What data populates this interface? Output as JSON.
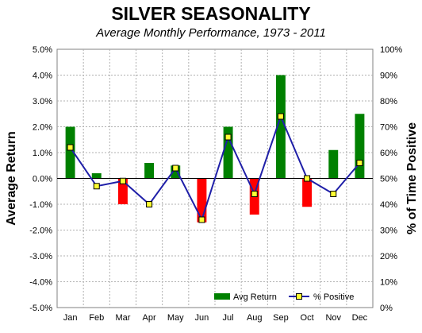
{
  "chart_data": {
    "type": "bar+line",
    "title": "SILVER SEASONALITY",
    "subtitle": "Average Monthly Performance, 1973 - 2011",
    "categories": [
      "Jan",
      "Feb",
      "Mar",
      "Apr",
      "May",
      "Jun",
      "Jul",
      "Aug",
      "Sep",
      "Oct",
      "Nov",
      "Dec"
    ],
    "series": [
      {
        "name": "Avg Return",
        "type": "bar",
        "axis": "left",
        "color": "#008000",
        "negative_color": "#ff0000",
        "values": [
          2.0,
          0.2,
          -1.0,
          0.6,
          0.5,
          -1.7,
          2.0,
          -1.4,
          4.0,
          -1.1,
          1.1,
          2.5
        ]
      },
      {
        "name": "% Positive",
        "type": "line",
        "axis": "right",
        "color": "#1f1fa8",
        "marker_color": "#ffff33",
        "values": [
          62,
          47,
          49,
          40,
          54,
          34,
          66,
          44,
          74,
          50,
          44,
          56
        ]
      }
    ],
    "ylabel": "Average Return",
    "ylabel_right": "% of Time Positive",
    "ylim": [
      -5,
      5
    ],
    "ylim_right": [
      0,
      100
    ],
    "yticks": [
      "5.0%",
      "4.0%",
      "3.0%",
      "2.0%",
      "1.0%",
      "0.0%",
      "-1.0%",
      "-2.0%",
      "-3.0%",
      "-4.0%",
      "-5.0%"
    ],
    "yticks_right": [
      "100%",
      "90%",
      "80%",
      "70%",
      "60%",
      "50%",
      "40%",
      "30%",
      "20%",
      "10%",
      "0%"
    ],
    "grid": true,
    "legend_position": "bottom-right"
  }
}
